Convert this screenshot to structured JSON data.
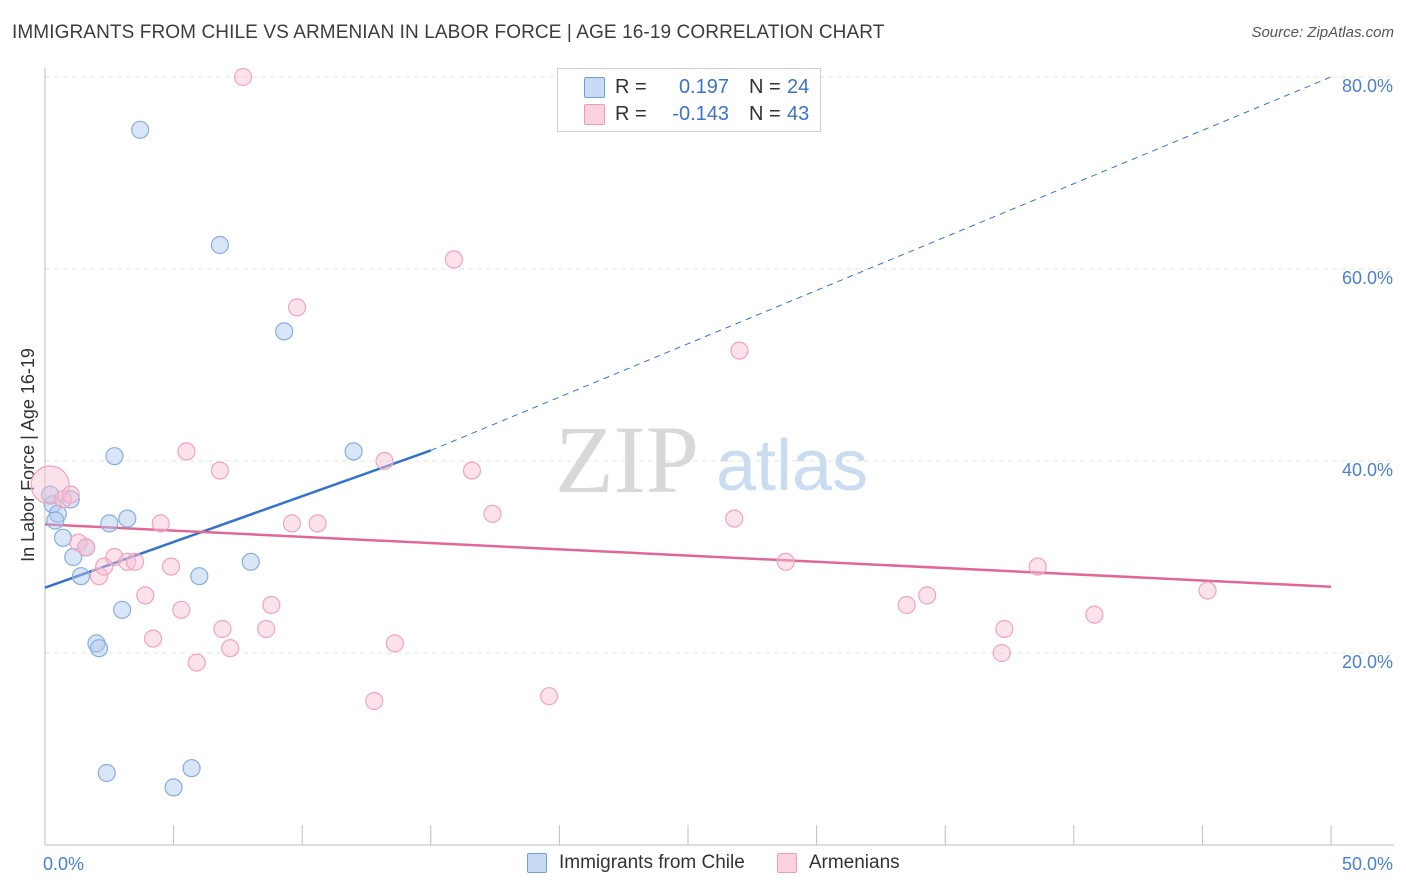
{
  "title": "IMMIGRANTS FROM CHILE VS ARMENIAN IN LABOR FORCE | AGE 16-19 CORRELATION CHART",
  "source": "Source: ZipAtlas.com",
  "watermark": {
    "zip": "ZIP",
    "atlas": "atlas"
  },
  "legend": {
    "rows": [
      {
        "r_label": "R =",
        "r_value": "0.197",
        "n_label": "N =",
        "n_value": "24"
      },
      {
        "r_label": "R =",
        "r_value": "-0.143",
        "n_label": "N =",
        "n_value": "43"
      }
    ]
  },
  "chart_data": {
    "type": "scatter",
    "title": "IMMIGRANTS FROM CHILE VS ARMENIAN IN LABOR FORCE | AGE 16-19 CORRELATION CHART",
    "xlabel": "",
    "ylabel": "In Labor Force | Age 16-19",
    "xlim": [
      0,
      50
    ],
    "ylim": [
      0,
      80
    ],
    "x_tick_labels": [
      "0.0%",
      "50.0%"
    ],
    "y_ticks": [
      20,
      40,
      60,
      80
    ],
    "y_tick_labels": [
      "20.0%",
      "40.0%",
      "60.0%",
      "80.0%"
    ],
    "grid": true,
    "series": [
      {
        "name": "Immigrants from Chile",
        "color": "#8fb4e8",
        "line_color": "#3572cc",
        "trend": {
          "x0": 0,
          "y0": 26.8,
          "x1": 15,
          "y1": 41.1,
          "extend_to_x": 50,
          "extend_to_y": 80.0
        },
        "points": [
          [
            0.3,
            35.5
          ],
          [
            0.5,
            34.5
          ],
          [
            0.7,
            32.0
          ],
          [
            1.0,
            36.0
          ],
          [
            1.1,
            30.0
          ],
          [
            1.4,
            28.0
          ],
          [
            1.6,
            31.0
          ],
          [
            2.0,
            21.0
          ],
          [
            2.1,
            20.5
          ],
          [
            2.4,
            7.5
          ],
          [
            2.5,
            33.5
          ],
          [
            2.7,
            40.5
          ],
          [
            3.0,
            24.5
          ],
          [
            3.2,
            34.0
          ],
          [
            3.7,
            74.5
          ],
          [
            5.0,
            6.0
          ],
          [
            5.7,
            8.0
          ],
          [
            6.0,
            28.0
          ],
          [
            6.8,
            62.5
          ],
          [
            8.0,
            29.5
          ],
          [
            9.3,
            53.5
          ],
          [
            12.0,
            41.0
          ],
          [
            0.2,
            36.5
          ],
          [
            0.4,
            33.8
          ]
        ]
      },
      {
        "name": "Armenians",
        "color": "#f5a8c0",
        "line_color": "#e06898",
        "trend": {
          "x0": 0,
          "y0": 33.4,
          "x1": 50,
          "y1": 26.9
        },
        "points": [
          [
            0.2,
            37.5
          ],
          [
            0.7,
            36.0
          ],
          [
            1.0,
            36.5
          ],
          [
            1.3,
            31.5
          ],
          [
            1.6,
            31.0
          ],
          [
            2.1,
            28.0
          ],
          [
            2.3,
            29.0
          ],
          [
            2.7,
            30.0
          ],
          [
            3.2,
            29.5
          ],
          [
            3.5,
            29.5
          ],
          [
            3.9,
            26.0
          ],
          [
            4.2,
            21.5
          ],
          [
            4.5,
            33.5
          ],
          [
            4.9,
            29.0
          ],
          [
            5.3,
            24.5
          ],
          [
            5.5,
            41.0
          ],
          [
            5.9,
            19.0
          ],
          [
            6.8,
            39.0
          ],
          [
            6.9,
            22.5
          ],
          [
            7.2,
            20.5
          ],
          [
            7.7,
            80.0
          ],
          [
            8.6,
            22.5
          ],
          [
            8.8,
            25.0
          ],
          [
            9.6,
            33.5
          ],
          [
            9.8,
            56.0
          ],
          [
            10.6,
            33.5
          ],
          [
            12.8,
            15.0
          ],
          [
            13.2,
            40.0
          ],
          [
            13.6,
            21.0
          ],
          [
            15.9,
            61.0
          ],
          [
            16.6,
            39.0
          ],
          [
            17.4,
            34.5
          ],
          [
            19.6,
            15.5
          ],
          [
            26.8,
            34.0
          ],
          [
            27.0,
            51.5
          ],
          [
            28.8,
            29.5
          ],
          [
            33.5,
            25.0
          ],
          [
            34.3,
            26.0
          ],
          [
            37.2,
            20.0
          ],
          [
            37.3,
            22.5
          ],
          [
            38.6,
            29.0
          ],
          [
            40.8,
            24.0
          ],
          [
            45.2,
            26.5
          ]
        ]
      }
    ]
  }
}
